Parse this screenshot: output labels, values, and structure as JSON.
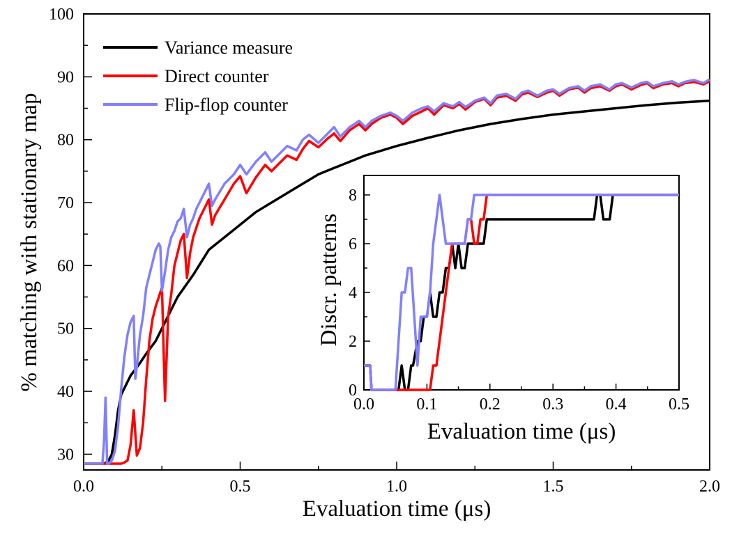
{
  "chart_data": [
    {
      "type": "line",
      "title": "",
      "xlabel": "Evaluation time (μs)",
      "ylabel": "% matching with stationary map",
      "xlim": [
        0.0,
        2.0
      ],
      "ylim": [
        27.5,
        100
      ],
      "xticks": [
        "0.0",
        "0.5",
        "1.0",
        "1.5",
        "2.0"
      ],
      "yticks": [
        "30",
        "40",
        "50",
        "60",
        "70",
        "80",
        "90",
        "100"
      ],
      "legend_position": "top-left",
      "series": [
        {
          "name": "Variance measure",
          "color": "#000000",
          "x": [
            0.0,
            0.06,
            0.07,
            0.08,
            0.09,
            0.1,
            0.11,
            0.12,
            0.13,
            0.15,
            0.18,
            0.2,
            0.23,
            0.25,
            0.28,
            0.3,
            0.35,
            0.4,
            0.45,
            0.5,
            0.55,
            0.6,
            0.7,
            0.75,
            0.8,
            0.9,
            1.0,
            1.1,
            1.2,
            1.3,
            1.4,
            1.5,
            1.6,
            1.7,
            1.8,
            1.9,
            2.0
          ],
          "values": [
            28.5,
            28.5,
            28.6,
            29.0,
            30.0,
            33.0,
            37.0,
            39.5,
            40.5,
            42.5,
            44.5,
            46.0,
            48.0,
            50.0,
            53.0,
            55.0,
            58.5,
            62.5,
            64.5,
            66.5,
            68.5,
            70.0,
            73.0,
            74.5,
            75.5,
            77.5,
            79.0,
            80.3,
            81.5,
            82.5,
            83.3,
            84.0,
            84.5,
            85.0,
            85.5,
            85.9,
            86.2
          ]
        },
        {
          "name": "Direct counter",
          "color": "#ff0000",
          "x": [
            0.0,
            0.1,
            0.12,
            0.13,
            0.14,
            0.15,
            0.16,
            0.17,
            0.18,
            0.19,
            0.2,
            0.21,
            0.22,
            0.23,
            0.24,
            0.25,
            0.26,
            0.27,
            0.28,
            0.29,
            0.3,
            0.31,
            0.32,
            0.33,
            0.34,
            0.35,
            0.36,
            0.37,
            0.38,
            0.39,
            0.4,
            0.41,
            0.42,
            0.45,
            0.48,
            0.5,
            0.52,
            0.55,
            0.58,
            0.6,
            0.62,
            0.65,
            0.68,
            0.7,
            0.72,
            0.75,
            0.78,
            0.8,
            0.82,
            0.85,
            0.88,
            0.9,
            0.92,
            0.95,
            0.98,
            1.0,
            1.02,
            1.05,
            1.08,
            1.1,
            1.12,
            1.15,
            1.18,
            1.2,
            1.22,
            1.25,
            1.28,
            1.3,
            1.32,
            1.35,
            1.38,
            1.4,
            1.42,
            1.45,
            1.48,
            1.5,
            1.52,
            1.55,
            1.58,
            1.6,
            1.62,
            1.65,
            1.68,
            1.7,
            1.72,
            1.75,
            1.78,
            1.8,
            1.82,
            1.85,
            1.88,
            1.9,
            1.92,
            1.95,
            1.98,
            2.0
          ],
          "values": [
            28.5,
            28.5,
            28.5,
            28.7,
            29.0,
            31.5,
            37.0,
            29.8,
            31.0,
            35.0,
            42.0,
            48.0,
            51.5,
            53.5,
            55.0,
            56.5,
            38.5,
            52.0,
            55.5,
            60.0,
            62.0,
            64.0,
            65.0,
            58.0,
            62.0,
            64.5,
            66.0,
            67.5,
            68.5,
            69.5,
            70.5,
            66.5,
            68.0,
            70.5,
            73.0,
            74.2,
            71.5,
            74.0,
            76.0,
            75.0,
            76.0,
            77.5,
            76.8,
            78.5,
            79.8,
            78.8,
            80.2,
            81.0,
            79.8,
            81.5,
            82.5,
            81.5,
            82.5,
            83.5,
            84.0,
            83.5,
            82.5,
            83.8,
            84.5,
            85.0,
            84.0,
            85.5,
            85.0,
            85.7,
            84.8,
            86.0,
            86.5,
            85.5,
            86.7,
            87.0,
            86.2,
            87.2,
            87.5,
            86.8,
            87.5,
            87.8,
            87.0,
            88.0,
            88.3,
            87.5,
            88.2,
            88.5,
            87.8,
            88.5,
            88.8,
            88.0,
            88.7,
            89.0,
            88.2,
            88.8,
            89.0,
            88.5,
            89.0,
            89.2,
            88.8,
            89.3
          ]
        },
        {
          "name": "Flip-flop counter",
          "color": "#8080ff",
          "x": [
            0.0,
            0.06,
            0.065,
            0.07,
            0.075,
            0.08,
            0.09,
            0.1,
            0.11,
            0.12,
            0.13,
            0.14,
            0.15,
            0.16,
            0.165,
            0.17,
            0.18,
            0.19,
            0.2,
            0.21,
            0.22,
            0.23,
            0.24,
            0.245,
            0.25,
            0.26,
            0.27,
            0.28,
            0.29,
            0.3,
            0.31,
            0.32,
            0.33,
            0.34,
            0.35,
            0.36,
            0.37,
            0.38,
            0.39,
            0.4,
            0.41,
            0.42,
            0.45,
            0.48,
            0.5,
            0.52,
            0.55,
            0.58,
            0.6,
            0.62,
            0.65,
            0.68,
            0.7,
            0.72,
            0.75,
            0.78,
            0.8,
            0.82,
            0.85,
            0.88,
            0.9,
            0.92,
            0.95,
            0.98,
            1.0,
            1.02,
            1.05,
            1.08,
            1.1,
            1.12,
            1.15,
            1.18,
            1.2,
            1.22,
            1.25,
            1.28,
            1.3,
            1.32,
            1.35,
            1.38,
            1.4,
            1.42,
            1.45,
            1.48,
            1.5,
            1.52,
            1.55,
            1.58,
            1.6,
            1.62,
            1.65,
            1.68,
            1.7,
            1.72,
            1.75,
            1.78,
            1.8,
            1.82,
            1.85,
            1.88,
            1.9,
            1.92,
            1.95,
            1.98,
            2.0
          ],
          "values": [
            28.5,
            28.5,
            32.0,
            39.0,
            28.5,
            28.5,
            29.0,
            30.5,
            34.5,
            40.5,
            45.5,
            49.0,
            51.0,
            52.0,
            42.0,
            44.0,
            49.0,
            52.0,
            56.5,
            58.5,
            60.5,
            62.5,
            63.5,
            63.0,
            56.0,
            59.0,
            62.5,
            64.5,
            65.5,
            67.0,
            67.5,
            69.0,
            64.5,
            66.5,
            67.5,
            69.0,
            70.0,
            71.0,
            72.0,
            73.0,
            69.5,
            70.5,
            73.0,
            74.5,
            76.0,
            74.5,
            76.5,
            78.0,
            76.5,
            77.5,
            79.0,
            78.3,
            80.0,
            80.8,
            79.5,
            81.0,
            82.0,
            80.5,
            82.0,
            83.0,
            82.0,
            83.0,
            83.8,
            84.3,
            83.8,
            83.0,
            84.3,
            85.0,
            85.3,
            84.5,
            85.8,
            85.3,
            86.0,
            85.2,
            86.2,
            86.7,
            85.8,
            87.0,
            87.3,
            86.5,
            87.5,
            87.8,
            87.0,
            87.8,
            88.0,
            87.3,
            88.2,
            88.5,
            87.8,
            88.5,
            88.8,
            88.0,
            88.8,
            89.0,
            88.3,
            89.0,
            89.2,
            88.5,
            89.0,
            89.3,
            88.8,
            89.2,
            89.5,
            89.0,
            89.6
          ]
        }
      ]
    },
    {
      "type": "line",
      "title": "",
      "xlabel": "Evaluation time (μs)",
      "ylabel": "Discr. patterns",
      "xlim": [
        0.0,
        0.5
      ],
      "ylim": [
        0,
        8.8
      ],
      "xticks": [
        "0.0",
        "0.1",
        "0.2",
        "0.3",
        "0.4",
        "0.5"
      ],
      "yticks": [
        "0",
        "2",
        "4",
        "6",
        "8"
      ],
      "series": [
        {
          "name": "Variance measure",
          "color": "#000000",
          "x": [
            0.0,
            0.01,
            0.012,
            0.055,
            0.06,
            0.065,
            0.07,
            0.075,
            0.078,
            0.085,
            0.09,
            0.095,
            0.1,
            0.105,
            0.11,
            0.115,
            0.12,
            0.125,
            0.13,
            0.135,
            0.14,
            0.145,
            0.15,
            0.155,
            0.16,
            0.165,
            0.17,
            0.175,
            0.18,
            0.185,
            0.19,
            0.195,
            0.2,
            0.205,
            0.21,
            0.365,
            0.37,
            0.375,
            0.38,
            0.39,
            0.395,
            0.4,
            0.5
          ],
          "values": [
            1,
            1,
            0,
            0,
            1,
            0,
            0,
            1,
            1,
            2,
            2,
            3,
            3,
            4,
            3,
            3,
            4,
            4,
            5,
            5,
            6,
            5,
            6,
            5,
            5,
            6,
            6,
            6,
            6,
            6,
            6,
            7,
            7,
            7,
            7,
            7,
            8,
            8,
            7,
            7,
            8,
            8,
            8
          ]
        },
        {
          "name": "Direct counter",
          "color": "#ff0000",
          "x": [
            0.0,
            0.01,
            0.012,
            0.105,
            0.11,
            0.115,
            0.12,
            0.125,
            0.13,
            0.135,
            0.14,
            0.145,
            0.15,
            0.155,
            0.16,
            0.165,
            0.17,
            0.175,
            0.18,
            0.185,
            0.19,
            0.195,
            0.2,
            0.5
          ],
          "values": [
            1,
            1,
            0,
            0,
            1,
            1,
            2,
            3,
            4,
            5,
            6,
            6,
            6,
            6,
            6,
            7,
            7,
            6,
            6,
            7,
            7,
            8,
            8,
            8
          ]
        },
        {
          "name": "Flip-flop counter",
          "color": "#8080ff",
          "x": [
            0.0,
            0.01,
            0.012,
            0.05,
            0.055,
            0.06,
            0.065,
            0.07,
            0.075,
            0.08,
            0.085,
            0.09,
            0.095,
            0.1,
            0.105,
            0.11,
            0.115,
            0.12,
            0.125,
            0.13,
            0.135,
            0.14,
            0.15,
            0.16,
            0.165,
            0.17,
            0.175,
            0.5
          ],
          "values": [
            1,
            1,
            0,
            0,
            2,
            4,
            4,
            5,
            5,
            3,
            1,
            3,
            3,
            3,
            4,
            6,
            7,
            8,
            7,
            6,
            6,
            6,
            6,
            6,
            7,
            7,
            8,
            8
          ]
        }
      ]
    }
  ]
}
